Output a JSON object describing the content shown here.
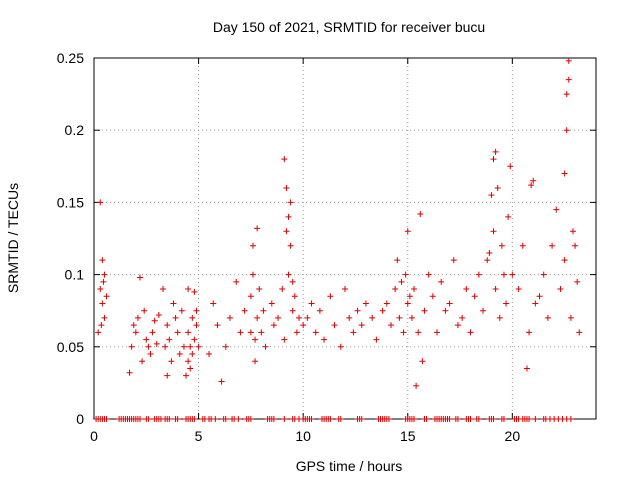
{
  "chart_data": {
    "type": "scatter",
    "title": "Day 150 of 2021, SRMTID for receiver bucu",
    "xlabel": "GPS time / hours",
    "ylabel": "SRMTID / TECUs",
    "xlim": [
      0,
      24
    ],
    "ylim": [
      0,
      0.25
    ],
    "xticks": [
      0,
      5,
      10,
      15,
      20
    ],
    "xtick_labels": [
      "0",
      "5",
      "10",
      "15",
      "20"
    ],
    "yticks": [
      0,
      0.05,
      0.1,
      0.15,
      0.2,
      0.25
    ],
    "ytick_labels": [
      "0",
      "0.05",
      "0.1",
      "0.15",
      "0.2",
      "0.25"
    ],
    "grid": true,
    "marker": "plus",
    "series": [
      {
        "name": "SRMTID",
        "color": "#e00000",
        "x": [
          0.2,
          0.3,
          0.3,
          0.35,
          0.4,
          0.4,
          0.45,
          0.5,
          0.5,
          0.6,
          1.7,
          1.8,
          1.9,
          2.0,
          2.1,
          2.2,
          2.3,
          2.4,
          2.5,
          2.6,
          2.7,
          2.8,
          2.9,
          3.0,
          3.1,
          3.3,
          3.4,
          3.5,
          3.5,
          3.6,
          3.7,
          3.8,
          3.9,
          4.0,
          4.1,
          4.2,
          4.3,
          4.4,
          4.5,
          4.5,
          4.5,
          4.6,
          4.6,
          4.7,
          4.7,
          4.8,
          4.8,
          4.9,
          4.9,
          5.0,
          5.5,
          5.7,
          5.9,
          6.1,
          6.3,
          6.5,
          6.8,
          7.0,
          7.2,
          7.5,
          7.5,
          7.6,
          7.6,
          7.7,
          7.7,
          7.8,
          7.8,
          7.9,
          8.0,
          8.1,
          8.2,
          8.5,
          8.6,
          8.8,
          9.0,
          9.1,
          9.1,
          9.2,
          9.2,
          9.3,
          9.3,
          9.4,
          9.4,
          9.5,
          9.5,
          9.6,
          9.7,
          9.8,
          10.0,
          10.2,
          10.4,
          10.6,
          10.8,
          11.0,
          11.3,
          11.5,
          11.8,
          12.0,
          12.2,
          12.4,
          12.6,
          12.8,
          13.0,
          13.3,
          13.5,
          13.8,
          14.0,
          14.2,
          14.4,
          14.5,
          14.6,
          14.7,
          14.8,
          14.9,
          15.0,
          15.0,
          15.1,
          15.2,
          15.3,
          15.4,
          15.5,
          15.6,
          15.7,
          15.8,
          16.0,
          16.2,
          16.4,
          16.6,
          16.8,
          17.0,
          17.2,
          17.4,
          17.6,
          17.8,
          18.0,
          18.2,
          18.4,
          18.6,
          18.8,
          18.9,
          19.0,
          19.1,
          19.1,
          19.2,
          19.2,
          19.3,
          19.4,
          19.5,
          19.6,
          19.7,
          19.8,
          19.9,
          20.0,
          20.3,
          20.5,
          20.7,
          20.8,
          20.9,
          21.0,
          21.1,
          21.3,
          21.5,
          21.7,
          21.9,
          22.1,
          22.3,
          22.5,
          22.5,
          22.6,
          22.6,
          22.7,
          22.7,
          22.8,
          22.9,
          23.0,
          23.1,
          23.2
        ],
        "y": [
          0.06,
          0.09,
          0.15,
          0.065,
          0.08,
          0.11,
          0.095,
          0.07,
          0.1,
          0.085,
          0.032,
          0.05,
          0.065,
          0.06,
          0.07,
          0.098,
          0.04,
          0.075,
          0.055,
          0.05,
          0.045,
          0.06,
          0.068,
          0.052,
          0.072,
          0.09,
          0.05,
          0.03,
          0.065,
          0.055,
          0.04,
          0.08,
          0.07,
          0.06,
          0.045,
          0.075,
          0.05,
          0.03,
          0.04,
          0.06,
          0.09,
          0.05,
          0.035,
          0.07,
          0.045,
          0.055,
          0.088,
          0.065,
          0.075,
          0.05,
          0.045,
          0.08,
          0.065,
          0.026,
          0.05,
          0.07,
          0.095,
          0.06,
          0.075,
          0.06,
          0.085,
          0.1,
          0.12,
          0.04,
          0.055,
          0.07,
          0.132,
          0.09,
          0.06,
          0.075,
          0.05,
          0.08,
          0.065,
          0.07,
          0.09,
          0.055,
          0.18,
          0.16,
          0.13,
          0.14,
          0.1,
          0.15,
          0.12,
          0.075,
          0.095,
          0.085,
          0.06,
          0.07,
          0.065,
          0.07,
          0.08,
          0.06,
          0.075,
          0.055,
          0.085,
          0.065,
          0.05,
          0.09,
          0.07,
          0.06,
          0.075,
          0.065,
          0.08,
          0.07,
          0.055,
          0.075,
          0.08,
          0.065,
          0.09,
          0.11,
          0.07,
          0.095,
          0.06,
          0.1,
          0.08,
          0.13,
          0.085,
          0.07,
          0.09,
          0.023,
          0.06,
          0.142,
          0.04,
          0.075,
          0.1,
          0.085,
          0.06,
          0.095,
          0.075,
          0.08,
          0.11,
          0.065,
          0.07,
          0.09,
          0.06,
          0.085,
          0.1,
          0.075,
          0.11,
          0.115,
          0.155,
          0.13,
          0.18,
          0.185,
          0.09,
          0.16,
          0.07,
          0.12,
          0.1,
          0.08,
          0.14,
          0.175,
          0.1,
          0.09,
          0.12,
          0.035,
          0.06,
          0.162,
          0.165,
          0.08,
          0.085,
          0.1,
          0.07,
          0.12,
          0.145,
          0.09,
          0.11,
          0.17,
          0.2,
          0.225,
          0.235,
          0.248,
          0.07,
          0.13,
          0.12,
          0.095,
          0.06
        ],
        "zero_x": [
          0.1,
          0.2,
          0.3,
          0.4,
          0.5,
          0.6,
          1.2,
          1.3,
          1.4,
          1.5,
          1.6,
          1.7,
          1.8,
          1.9,
          2.0,
          2.1,
          2.2,
          2.5,
          2.6,
          2.9,
          3.0,
          3.1,
          3.2,
          3.4,
          3.5,
          3.6,
          3.9,
          4.0,
          4.4,
          4.5,
          4.6,
          4.7,
          4.8,
          5.2,
          5.3,
          5.5,
          5.6,
          5.8,
          6.2,
          6.3,
          6.6,
          6.7,
          6.9,
          7.3,
          7.4,
          7.5,
          8.3,
          8.4,
          8.5,
          8.6,
          9.1,
          9.5,
          9.6,
          9.8,
          10.0,
          10.1,
          10.2,
          10.3,
          10.4,
          10.9,
          11.0,
          11.1,
          11.2,
          11.3,
          11.7,
          11.8,
          12.6,
          12.7,
          12.8,
          13.6,
          13.7,
          13.8,
          13.9,
          14.0,
          14.1,
          14.9,
          15.0,
          15.1,
          15.2,
          15.3,
          15.8,
          15.9,
          16.3,
          16.4,
          16.5,
          16.6,
          16.7,
          16.8,
          16.9,
          17.0,
          17.3,
          17.4,
          17.8,
          17.9,
          18.0,
          18.3,
          18.4,
          18.9,
          19.0,
          19.1,
          19.5,
          19.6,
          20.1,
          20.2,
          20.3,
          20.5,
          20.6,
          20.7,
          20.8,
          21.1,
          21.5,
          21.6,
          21.8,
          22.0,
          22.2,
          22.4,
          22.6,
          22.8
        ]
      }
    ]
  }
}
